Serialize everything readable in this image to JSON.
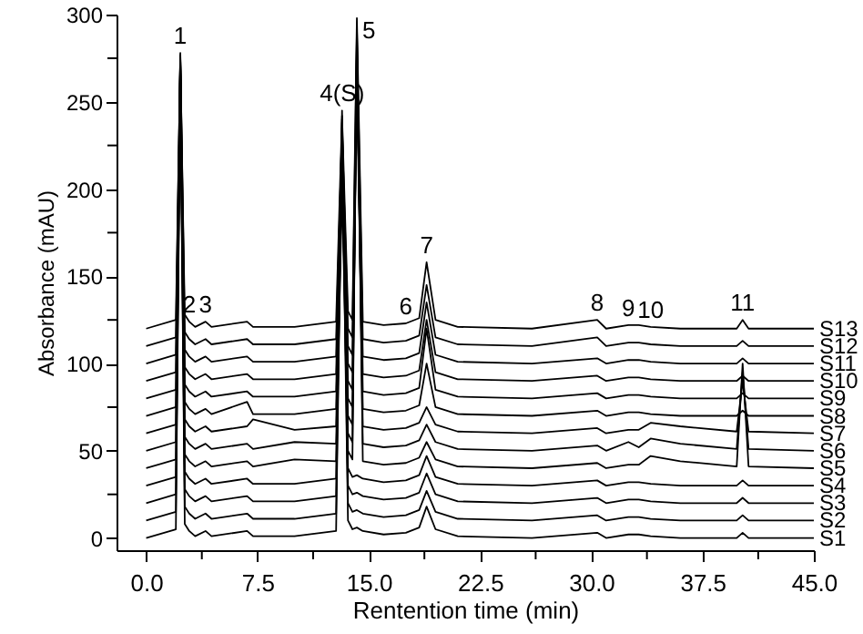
{
  "chart_data": {
    "type": "line",
    "xlabel": "Rentention time (min)",
    "ylabel": "Absorbance (mAU)",
    "xlim": [
      -2,
      45
    ],
    "ylim": [
      -7,
      300
    ],
    "xticks": [
      {
        "value": 0,
        "label": "0.0"
      },
      {
        "value": 3.75,
        "label": null
      },
      {
        "value": 7.5,
        "label": "7.5"
      },
      {
        "value": 11.25,
        "label": null
      },
      {
        "value": 15,
        "label": "15.0"
      },
      {
        "value": 18.75,
        "label": null
      },
      {
        "value": 22.5,
        "label": "22.5"
      },
      {
        "value": 26.25,
        "label": null
      },
      {
        "value": 30,
        "label": "30.0"
      },
      {
        "value": 33.75,
        "label": null
      },
      {
        "value": 37.5,
        "label": "37.5"
      },
      {
        "value": 41.25,
        "label": null
      },
      {
        "value": 45,
        "label": "45.0"
      }
    ],
    "yticks": [
      0,
      {
        "value": 25,
        "label": null
      },
      50,
      {
        "value": 75,
        "label": null
      },
      100,
      {
        "value": 125,
        "label": null
      },
      150,
      {
        "value": 175,
        "label": null
      },
      200,
      {
        "value": 225,
        "label": null
      },
      250,
      {
        "value": 275,
        "label": null
      },
      300
    ],
    "grid": false,
    "x": [
      0,
      2.0,
      2.3,
      2.6,
      2.9,
      3.3,
      4.0,
      4.4,
      6.8,
      7.2,
      10,
      12.8,
      13.2,
      13.6,
      13.9,
      14.2,
      14.6,
      16,
      17.5,
      18.4,
      18.9,
      19.5,
      21,
      26,
      30.4,
      31,
      32.5,
      33.2,
      34,
      36,
      39.8,
      40.2,
      40.6,
      45
    ],
    "series": [
      {
        "name": "S1",
        "color": "#000000",
        "values": [
          0,
          5,
          262,
          8,
          4,
          1,
          4,
          1,
          4,
          1,
          1,
          4,
          230,
          10,
          5,
          6,
          4,
          2,
          3,
          6,
          18,
          5,
          1,
          0,
          3,
          0,
          2,
          2,
          1,
          0,
          0,
          3,
          0,
          0
        ]
      },
      {
        "name": "S2",
        "color": "#000000",
        "values": [
          10,
          15,
          265,
          18,
          14,
          11,
          14,
          11,
          14,
          11,
          11,
          14,
          235,
          20,
          15,
          16,
          14,
          12,
          13,
          16,
          27,
          15,
          11,
          10,
          13,
          10,
          12,
          12,
          11,
          10,
          10,
          13,
          10,
          10
        ]
      },
      {
        "name": "S3",
        "color": "#000000",
        "values": [
          20,
          25,
          268,
          28,
          24,
          21,
          24,
          21,
          24,
          21,
          21,
          24,
          240,
          30,
          25,
          26,
          24,
          22,
          23,
          26,
          37,
          25,
          21,
          20,
          23,
          20,
          22,
          22,
          21,
          20,
          20,
          23,
          20,
          20
        ]
      },
      {
        "name": "S4",
        "color": "#000000",
        "values": [
          30,
          35,
          270,
          38,
          34,
          31,
          34,
          31,
          34,
          31,
          31,
          34,
          245,
          40,
          35,
          36,
          34,
          32,
          33,
          36,
          47,
          35,
          31,
          30,
          33,
          30,
          32,
          32,
          31,
          30,
          30,
          33,
          30,
          30
        ]
      },
      {
        "name": "S5",
        "color": "#000000",
        "values": [
          40,
          45,
          272,
          48,
          44,
          41,
          44,
          41,
          44,
          41,
          45,
          44,
          200,
          50,
          45,
          290,
          44,
          42,
          43,
          46,
          55,
          45,
          41,
          40,
          43,
          40,
          42,
          42,
          47,
          44,
          41,
          100,
          41,
          40
        ]
      },
      {
        "name": "S6",
        "color": "#000000",
        "values": [
          50,
          55,
          274,
          58,
          54,
          51,
          54,
          51,
          54,
          51,
          55,
          54,
          210,
          60,
          55,
          285,
          54,
          52,
          53,
          56,
          65,
          55,
          51,
          50,
          53,
          50,
          55,
          52,
          57,
          54,
          51,
          95,
          51,
          50
        ]
      },
      {
        "name": "S7",
        "color": "#000000",
        "values": [
          60,
          65,
          276,
          68,
          64,
          61,
          64,
          61,
          64,
          68,
          62,
          64,
          215,
          70,
          65,
          280,
          64,
          62,
          63,
          66,
          75,
          65,
          61,
          60,
          63,
          60,
          62,
          62,
          66,
          64,
          61,
          90,
          61,
          60
        ]
      },
      {
        "name": "S8",
        "color": "#000000",
        "values": [
          70,
          75,
          270,
          78,
          74,
          71,
          74,
          71,
          78,
          71,
          71,
          74,
          220,
          80,
          75,
          260,
          74,
          72,
          73,
          76,
          100,
          75,
          71,
          70,
          73,
          70,
          72,
          72,
          71,
          70,
          70,
          73,
          70,
          70
        ]
      },
      {
        "name": "S9",
        "color": "#000000",
        "values": [
          80,
          85,
          272,
          88,
          84,
          81,
          84,
          81,
          84,
          81,
          81,
          84,
          225,
          90,
          85,
          270,
          84,
          82,
          83,
          86,
          120,
          85,
          81,
          80,
          83,
          80,
          82,
          82,
          81,
          80,
          80,
          83,
          80,
          80
        ]
      },
      {
        "name": "S10",
        "color": "#000000",
        "values": [
          90,
          95,
          275,
          98,
          94,
          91,
          94,
          91,
          94,
          91,
          91,
          94,
          230,
          100,
          95,
          275,
          94,
          92,
          93,
          96,
          125,
          95,
          91,
          90,
          93,
          90,
          92,
          92,
          91,
          90,
          90,
          93,
          90,
          90
        ]
      },
      {
        "name": "S11",
        "color": "#000000",
        "values": [
          100,
          105,
          277,
          108,
          104,
          101,
          104,
          101,
          104,
          101,
          101,
          104,
          238,
          110,
          105,
          280,
          104,
          102,
          103,
          106,
          135,
          105,
          101,
          100,
          103,
          100,
          102,
          102,
          101,
          100,
          100,
          103,
          100,
          100
        ]
      },
      {
        "name": "S12",
        "color": "#000000",
        "values": [
          110,
          115,
          278,
          118,
          114,
          111,
          114,
          111,
          114,
          111,
          111,
          114,
          235,
          120,
          115,
          292,
          114,
          112,
          113,
          116,
          145,
          115,
          111,
          110,
          115,
          110,
          112,
          112,
          111,
          110,
          110,
          113,
          110,
          110
        ]
      },
      {
        "name": "S13",
        "color": "#000000",
        "values": [
          120,
          125,
          275,
          128,
          124,
          121,
          124,
          121,
          124,
          121,
          121,
          124,
          242,
          130,
          125,
          298,
          124,
          122,
          123,
          126,
          158,
          125,
          121,
          120,
          125,
          120,
          122,
          122,
          121,
          120,
          120,
          125,
          120,
          120
        ]
      }
    ],
    "annotations": [
      {
        "text": "1",
        "x": 2.3,
        "y": 278
      },
      {
        "text": "2",
        "x": 2.9,
        "y": 124
      },
      {
        "text": "3",
        "x": 4.0,
        "y": 124
      },
      {
        "text": "4(S)",
        "x": 13.2,
        "y": 245
      },
      {
        "text": "5",
        "x": 14.2,
        "y": 298
      },
      {
        "text": "6",
        "x": 17.5,
        "y": 123
      },
      {
        "text": "7",
        "x": 18.9,
        "y": 158
      },
      {
        "text": "8",
        "x": 30.4,
        "y": 125
      },
      {
        "text": "9",
        "x": 32.5,
        "y": 122
      },
      {
        "text": "10",
        "x": 34,
        "y": 121
      },
      {
        "text": "11",
        "x": 40.2,
        "y": 125
      }
    ]
  }
}
